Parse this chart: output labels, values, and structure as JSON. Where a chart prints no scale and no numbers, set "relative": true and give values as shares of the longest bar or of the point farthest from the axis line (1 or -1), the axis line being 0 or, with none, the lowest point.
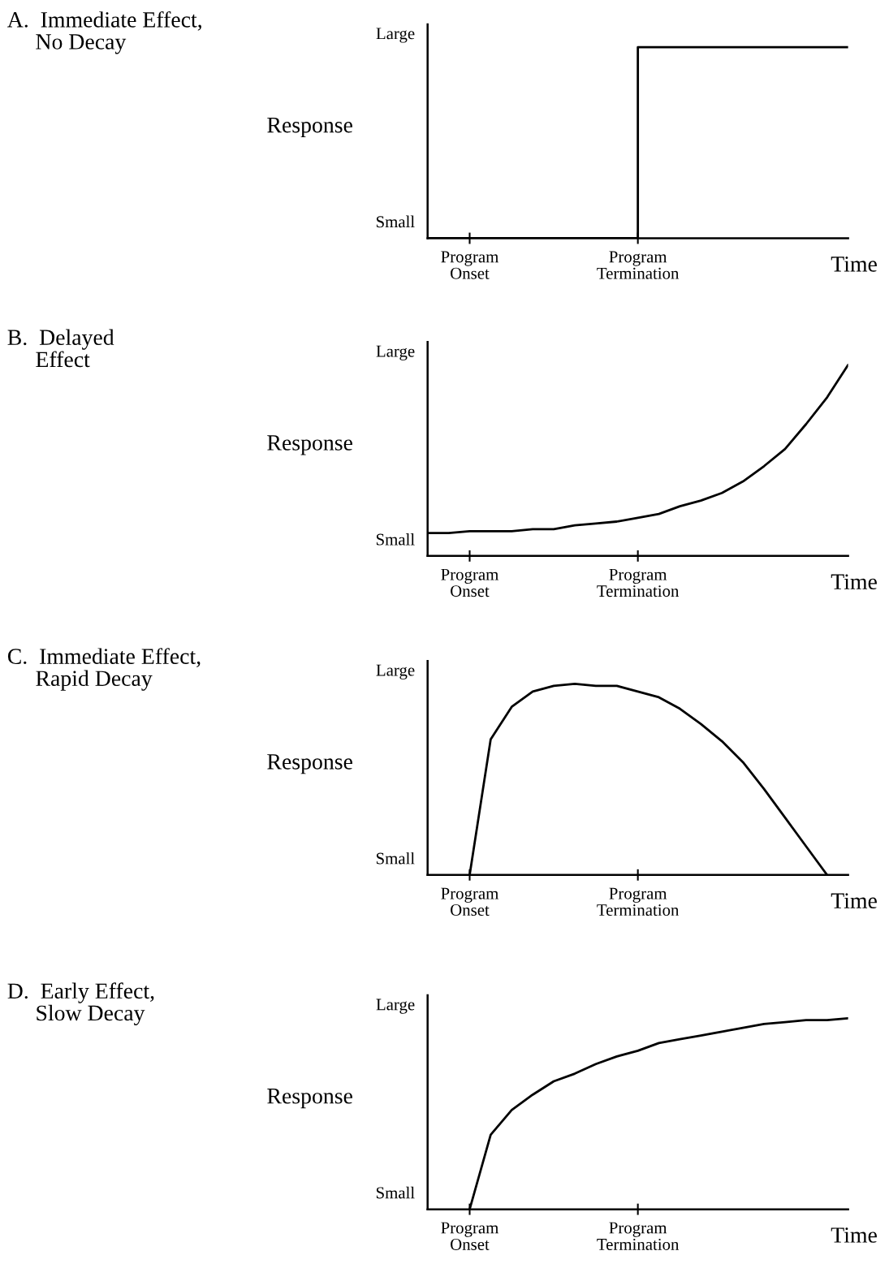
{
  "chart_data": [
    {
      "type": "step",
      "relative": true,
      "ylabel": "Response",
      "xlabel": "Time",
      "annotations": [
        "A.  Immediate Effect,\n     No Decay",
        "Large",
        "Small"
      ],
      "grid": false,
      "categories": [
        null,
        null,
        "Program\nOnset",
        null,
        null,
        null,
        null,
        null,
        null,
        null,
        "Program\nTermination",
        null,
        null,
        null,
        null,
        null,
        null,
        null,
        null,
        null,
        null
      ],
      "series": [
        {
          "color": "#000000",
          "values": [
            0,
            0,
            0,
            0,
            0,
            0,
            0,
            0,
            0,
            0,
            1,
            1,
            1,
            1,
            1,
            1,
            1,
            1,
            1,
            1,
            1
          ]
        }
      ]
    },
    {
      "type": "line",
      "relative": true,
      "ylabel": "Response",
      "xlabel": "Time",
      "annotations": [
        "B.  Delayed\n     Effect",
        "Large",
        "Small"
      ],
      "grid": false,
      "categories": [
        null,
        null,
        "Program\nOnset",
        null,
        null,
        null,
        null,
        null,
        null,
        null,
        "Program\nTermination",
        null,
        null,
        null,
        null,
        null,
        null,
        null,
        null,
        null,
        null
      ],
      "series": [
        {
          "color": "#000000",
          "values": [
            0.12,
            0.12,
            0.13,
            0.13,
            0.13,
            0.14,
            0.14,
            0.16,
            0.17,
            0.18,
            0.2,
            0.22,
            0.26,
            0.29,
            0.33,
            0.39,
            0.47,
            0.56,
            0.69,
            0.83,
            1
          ]
        }
      ]
    },
    {
      "type": "line",
      "relative": true,
      "ylabel": "Response",
      "xlabel": "Time",
      "annotations": [
        "C.  Immediate Effect,\n     Rapid Decay",
        "Large",
        "Small"
      ],
      "grid": false,
      "categories": [
        null,
        null,
        "Program\nOnset",
        null,
        null,
        null,
        null,
        null,
        null,
        null,
        "Program\nTermination",
        null,
        null,
        null,
        null,
        null,
        null,
        null,
        null,
        null,
        null
      ],
      "series": [
        {
          "color": "#000000",
          "values": [
            null,
            null,
            0,
            0.71,
            0.88,
            0.96,
            0.99,
            1,
            0.99,
            0.99,
            0.96,
            0.93,
            0.87,
            0.79,
            0.7,
            0.59,
            0.45,
            0.3,
            0.15,
            0,
            null
          ]
        }
      ]
    },
    {
      "type": "line",
      "relative": true,
      "ylabel": "Response",
      "xlabel": "Time",
      "annotations": [
        "D.  Early Effect,\n     Slow Decay",
        "Large",
        "Small"
      ],
      "grid": false,
      "categories": [
        null,
        null,
        "Program\nOnset",
        null,
        null,
        null,
        null,
        null,
        null,
        null,
        "Program\nTermination",
        null,
        null,
        null,
        null,
        null,
        null,
        null,
        null,
        null,
        null
      ],
      "series": [
        {
          "color": "#000000",
          "values": [
            null,
            null,
            0,
            0.39,
            0.52,
            0.6,
            0.67,
            0.71,
            0.76,
            0.8,
            0.83,
            0.87,
            0.89,
            0.91,
            0.93,
            0.95,
            0.97,
            0.98,
            0.99,
            0.99,
            1
          ]
        }
      ]
    }
  ]
}
